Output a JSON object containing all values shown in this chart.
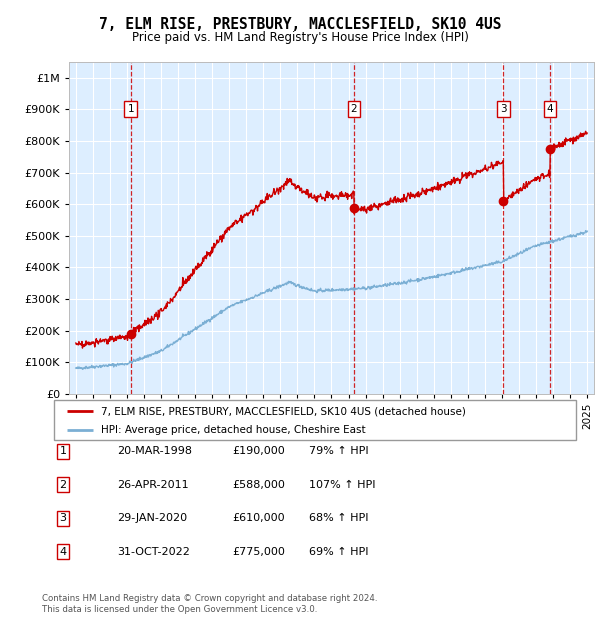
{
  "title": "7, ELM RISE, PRESTBURY, MACCLESFIELD, SK10 4US",
  "subtitle": "Price paid vs. HM Land Registry's House Price Index (HPI)",
  "legend_line1": "7, ELM RISE, PRESTBURY, MACCLESFIELD, SK10 4US (detached house)",
  "legend_line2": "HPI: Average price, detached house, Cheshire East",
  "footer_line1": "Contains HM Land Registry data © Crown copyright and database right 2024.",
  "footer_line2": "This data is licensed under the Open Government Licence v3.0.",
  "table": [
    {
      "num": 1,
      "date": "20-MAR-1998",
      "price": "£190,000",
      "hpi": "79% ↑ HPI"
    },
    {
      "num": 2,
      "date": "26-APR-2011",
      "price": "£588,000",
      "hpi": "107% ↑ HPI"
    },
    {
      "num": 3,
      "date": "29-JAN-2020",
      "price": "£610,000",
      "hpi": "68% ↑ HPI"
    },
    {
      "num": 4,
      "date": "31-OCT-2022",
      "price": "£775,000",
      "hpi": "69% ↑ HPI"
    }
  ],
  "sale_points": [
    {
      "year": 1998.22,
      "price": 190000,
      "label": 1
    },
    {
      "year": 2011.32,
      "price": 588000,
      "label": 2
    },
    {
      "year": 2020.08,
      "price": 610000,
      "label": 3
    },
    {
      "year": 2022.83,
      "price": 775000,
      "label": 4
    }
  ],
  "hpi_line_color": "#7bafd4",
  "price_line_color": "#cc0000",
  "sale_marker_color": "#cc0000",
  "background_color": "#ddeeff",
  "ylim": [
    0,
    1050000
  ],
  "xlim_start": 1994.6,
  "xlim_end": 2025.4,
  "yticks": [
    0,
    100000,
    200000,
    300000,
    400000,
    500000,
    600000,
    700000,
    800000,
    900000,
    1000000
  ],
  "xticks_start": 1995,
  "xticks_end": 2025
}
